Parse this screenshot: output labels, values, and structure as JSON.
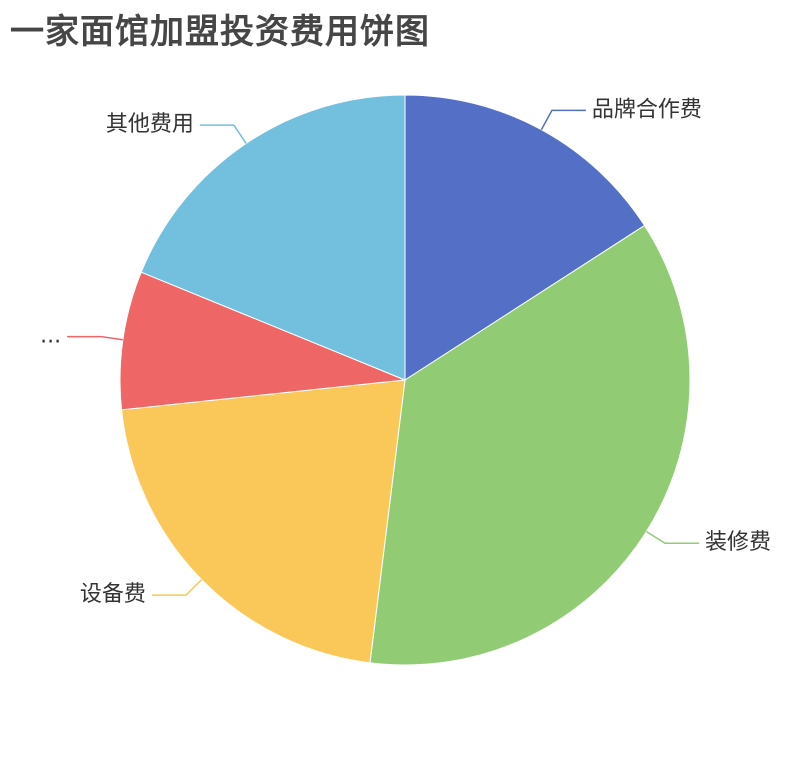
{
  "chart_data": {
    "type": "pie",
    "title": "一家面馆加盟投资费用饼图",
    "legend": "none",
    "slices": [
      {
        "label": "品牌合作费",
        "value": 16.2,
        "color": "#5470c6"
      },
      {
        "label": "装修费",
        "value": 36.8,
        "color": "#91cc75"
      },
      {
        "label": "设备费",
        "value": 21.8,
        "color": "#fac858"
      },
      {
        "label": "...",
        "value": 8.0,
        "color": "#ee6666"
      },
      {
        "label": "其他费用",
        "value": 19.2,
        "color": "#73c0de"
      }
    ]
  }
}
